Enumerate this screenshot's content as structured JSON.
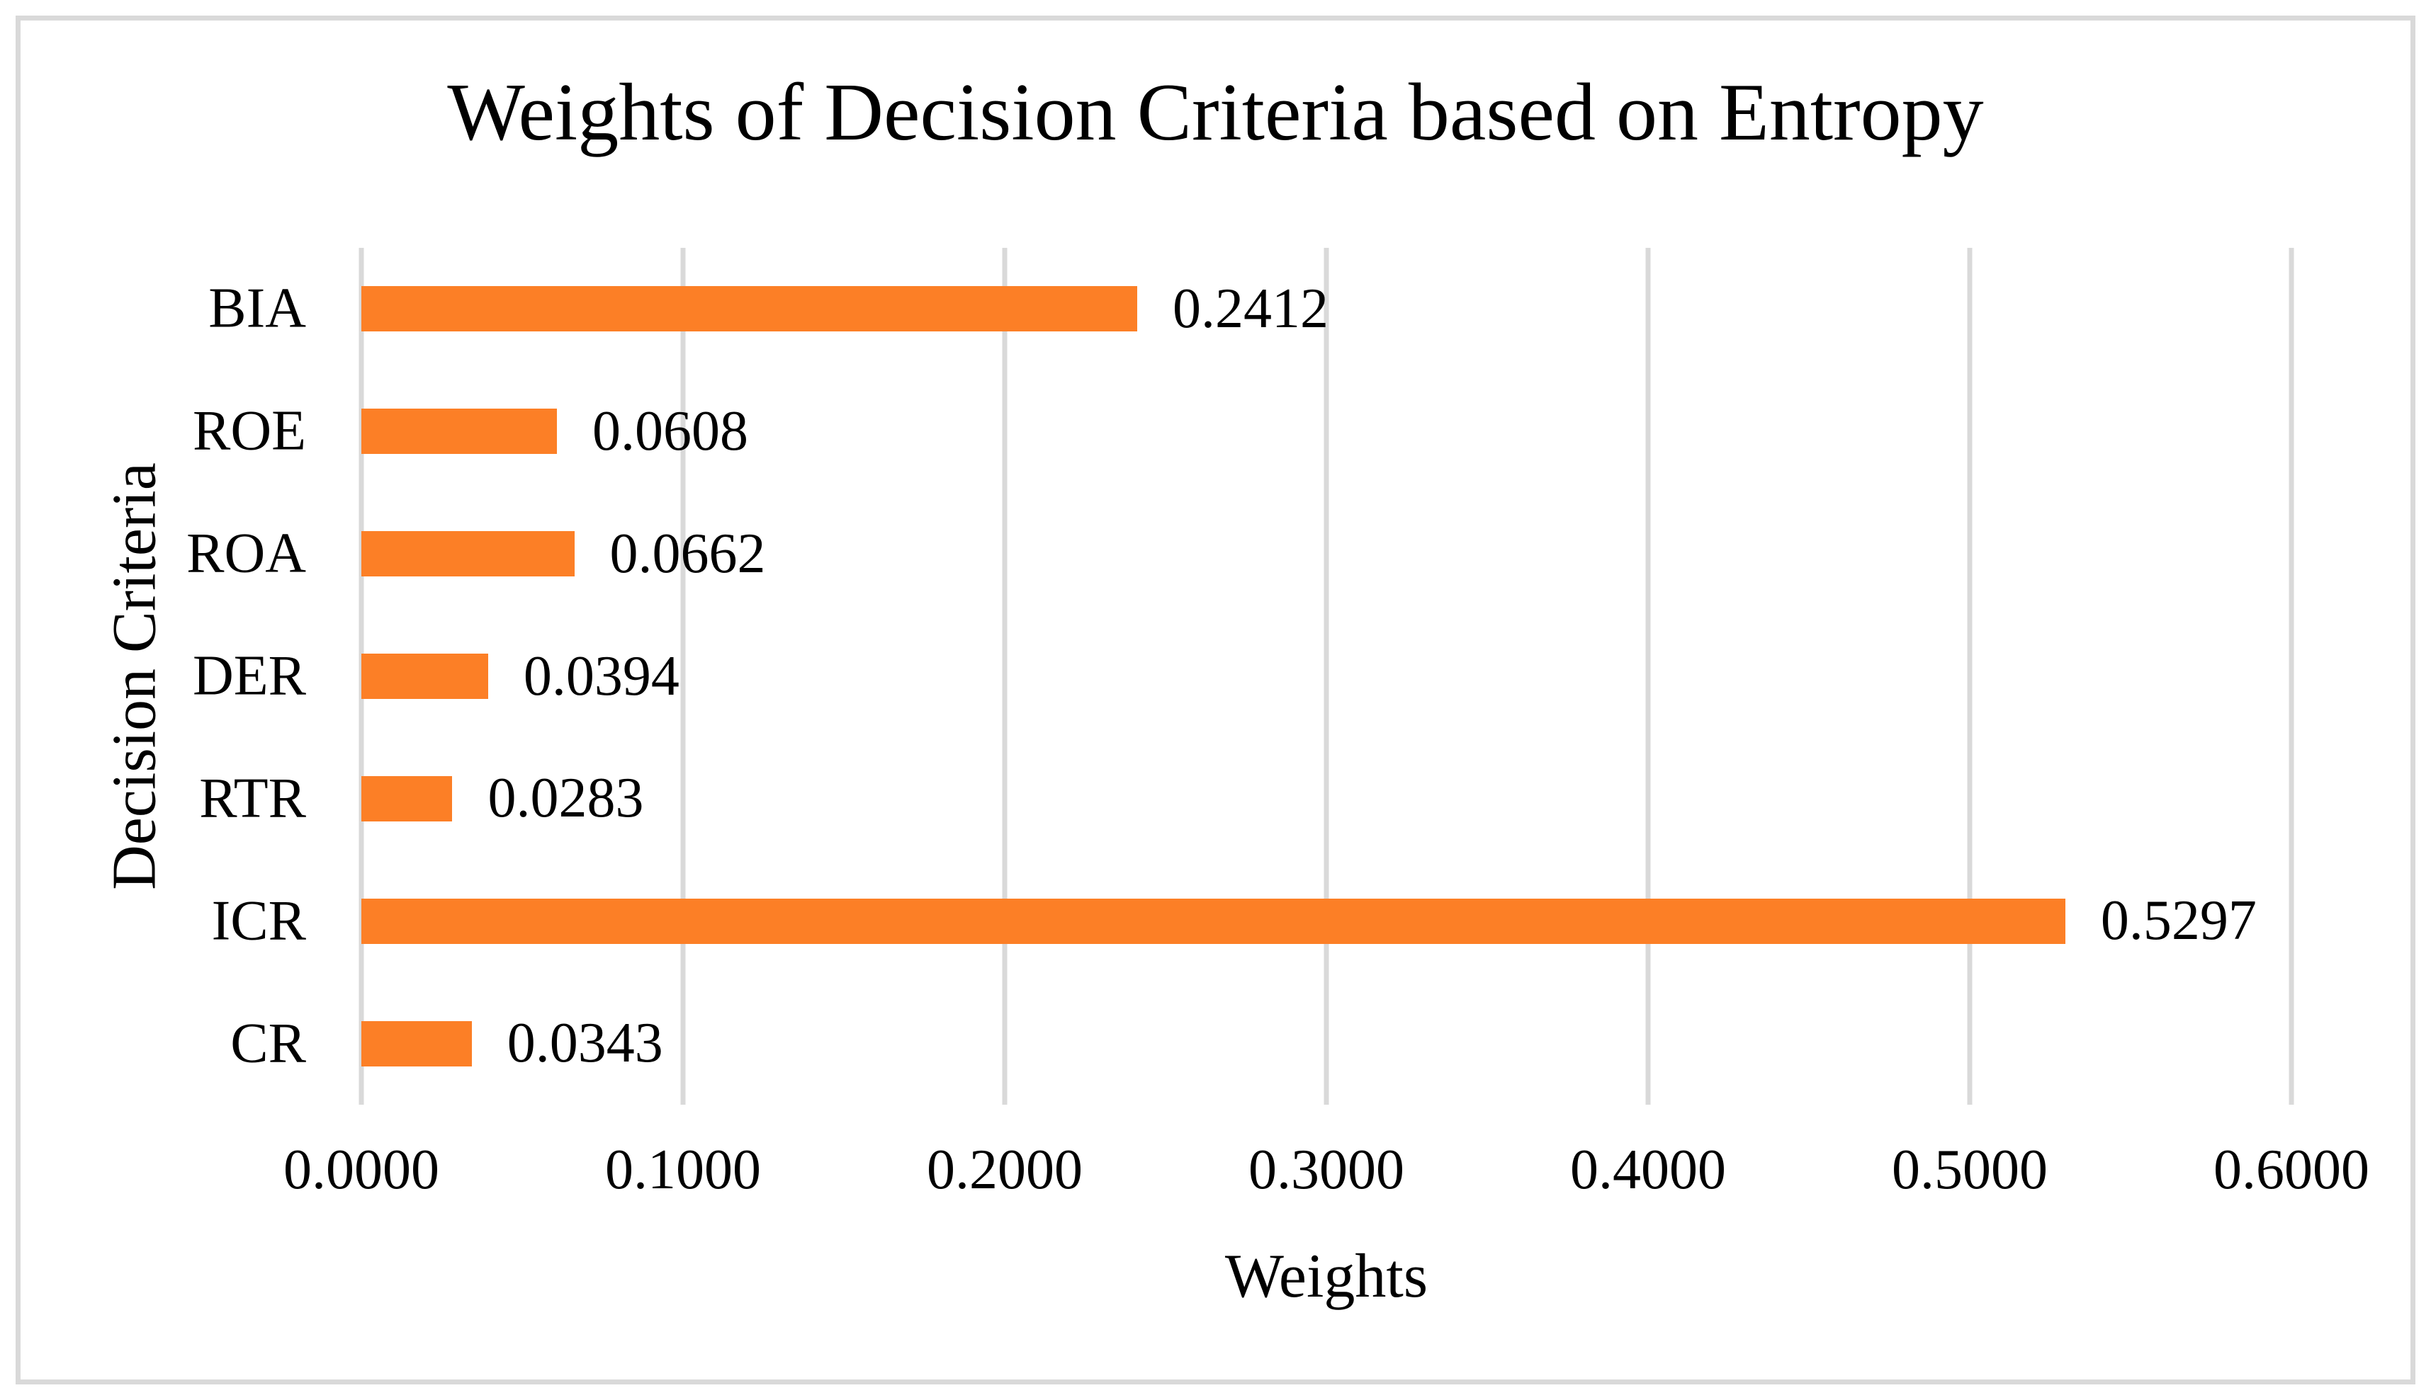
{
  "figure": {
    "background": "#FFFFFF",
    "border_color": "#D9D9D9"
  },
  "chart_data": {
    "type": "bar",
    "orientation": "horizontal",
    "title": "Weights of Decision Criteria based on Entropy",
    "xlabel": "Weights",
    "ylabel": "Decision Criteria",
    "categories": [
      "BIA",
      "ROE",
      "ROA",
      "DER",
      "RTR",
      "ICR",
      "CR"
    ],
    "values": [
      0.2412,
      0.0608,
      0.0662,
      0.0394,
      0.0283,
      0.5297,
      0.0343
    ],
    "value_labels": [
      "0.2412",
      "0.0608",
      "0.0662",
      "0.0394",
      "0.0283",
      "0.5297",
      "0.0343"
    ],
    "xlim": [
      0.0,
      0.6
    ],
    "x_tick_values": [
      0.0,
      0.1,
      0.2,
      0.3,
      0.4,
      0.5,
      0.6
    ],
    "x_tick_labels": [
      "0.0000",
      "0.1000",
      "0.2000",
      "0.3000",
      "0.4000",
      "0.5000",
      "0.6000"
    ],
    "grid": "vertical",
    "legend": "none",
    "bar_color": "#FC7F26",
    "gridline_color": "#D9D9D9",
    "text_color": "#000000"
  }
}
